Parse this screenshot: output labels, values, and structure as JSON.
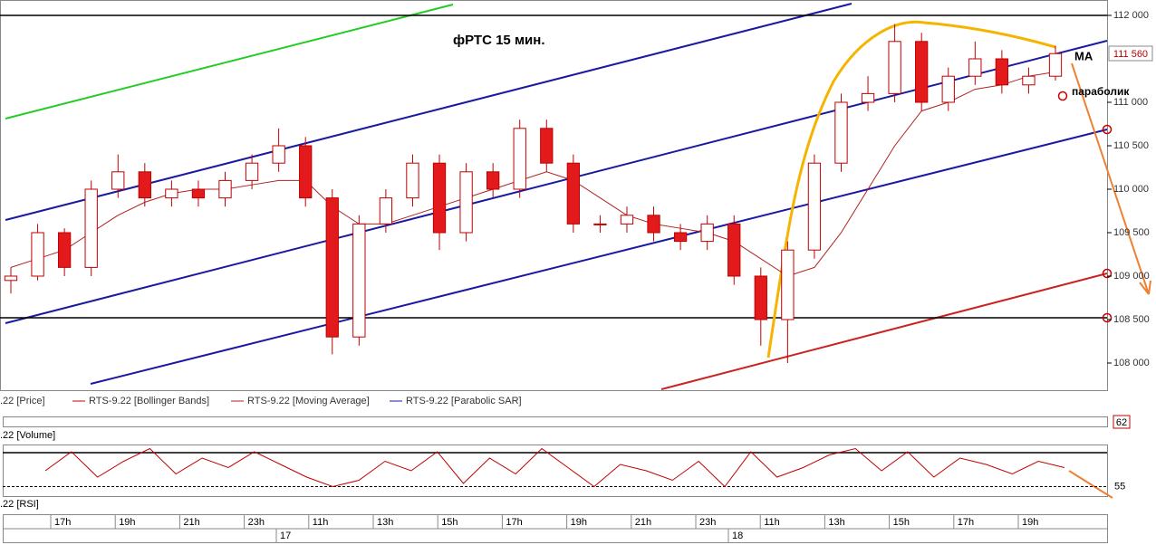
{
  "chart_data": {
    "type": "candlestick",
    "title": "фРТС   15 мин.",
    "annotations": {
      "ma": "MA",
      "parabolic": "параболик"
    },
    "legend": [
      ".22 [Price]",
      "RTS-9.22 [Bollinger Bands]",
      "RTS-9.22 [Moving Average]",
      "RTS-9.22 [Parabolic SAR]"
    ],
    "current_price": {
      "value": 111560,
      "label": "111 560"
    },
    "ylim": [
      107677,
      112177
    ],
    "yticks": [
      {
        "value": 108000,
        "label": "108 000"
      },
      {
        "value": 108500,
        "label": "108 500"
      },
      {
        "value": 109000,
        "label": "109 000"
      },
      {
        "value": 109500,
        "label": "109 500"
      },
      {
        "value": 110000,
        "label": "110 000"
      },
      {
        "value": 110500,
        "label": "110 500"
      },
      {
        "value": 111000,
        "label": "111 000"
      },
      {
        "value": 112000,
        "label": "112 000"
      }
    ],
    "open": [
      108950,
      109000,
      109500,
      109100,
      110000,
      110200,
      109900,
      110000,
      109900,
      110100,
      110300,
      110500,
      109900,
      108300,
      109600,
      109900,
      110300,
      109500,
      110200,
      110000,
      110700,
      110300,
      109600,
      109600,
      109700,
      109500,
      109400,
      109600,
      109000,
      108500,
      109300,
      110300,
      111000,
      111100,
      111700,
      111000,
      111300,
      111500,
      111200,
      111300
    ],
    "high": [
      109100,
      109600,
      109550,
      110100,
      110400,
      110300,
      110100,
      110100,
      110200,
      110400,
      110700,
      110600,
      110000,
      109700,
      110000,
      110400,
      110400,
      110300,
      110300,
      110800,
      110800,
      110400,
      109700,
      109800,
      109800,
      109600,
      109700,
      109700,
      109100,
      109400,
      110400,
      111100,
      111300,
      111900,
      111800,
      111400,
      111700,
      111600,
      111400,
      111650
    ],
    "low": [
      108800,
      108950,
      109000,
      109000,
      109900,
      109800,
      109800,
      109800,
      109800,
      110000,
      110200,
      109800,
      108100,
      108200,
      109500,
      109800,
      109300,
      109400,
      109900,
      109900,
      110200,
      109500,
      109500,
      109500,
      109400,
      109300,
      109300,
      108900,
      108200,
      108000,
      109200,
      110200,
      110900,
      111000,
      110900,
      110900,
      111200,
      111100,
      111100,
      111250
    ],
    "close": [
      109000,
      109500,
      109100,
      110000,
      110200,
      109900,
      110000,
      109900,
      110100,
      110300,
      110500,
      109900,
      108300,
      109600,
      109900,
      110300,
      109500,
      110200,
      110000,
      110700,
      110300,
      109600,
      109600,
      109700,
      109500,
      109400,
      109600,
      109000,
      108500,
      109300,
      110300,
      111000,
      111100,
      111700,
      111000,
      111300,
      111500,
      111200,
      111300,
      111560
    ],
    "moving_average": [
      109100,
      109200,
      109300,
      109500,
      109700,
      109850,
      109950,
      110000,
      110000,
      110050,
      110100,
      110100,
      109800,
      109600,
      109600,
      109700,
      109800,
      109900,
      110000,
      110100,
      110200,
      110100,
      109900,
      109700,
      109600,
      109550,
      109500,
      109400,
      109200,
      109000,
      109100,
      109500,
      110000,
      110500,
      110900,
      111000,
      111150,
      111200,
      111300,
      111350
    ],
    "up_color": "#ffffff",
    "down_color": "#e31a1c",
    "candle_edge": "#c00000",
    "ma_color": "#b22222",
    "volume_panel": {
      "label": ".22 [Volume]",
      "value_label": "62"
    },
    "rsi": {
      "label": ".22 [RSI]",
      "ylim": [
        52,
        68
      ],
      "yticks": [
        55
      ],
      "color": "#c00000",
      "values": [
        60,
        66,
        58,
        63,
        67,
        59,
        64,
        61,
        66,
        62,
        58,
        55,
        57,
        63,
        60,
        66,
        56,
        64,
        59,
        67,
        61,
        55,
        62,
        60,
        57,
        63,
        55,
        66,
        58,
        61,
        65,
        67,
        60,
        66,
        58,
        64,
        62,
        59,
        63,
        61
      ]
    },
    "time_labels": [
      "17h",
      "19h",
      "21h",
      "23h",
      "11h",
      "13h",
      "15h",
      "17h",
      "19h",
      "21h",
      "23h",
      "11h",
      "13h",
      "15h",
      "17h",
      "19h"
    ],
    "date_labels": [
      "17",
      "18"
    ]
  }
}
